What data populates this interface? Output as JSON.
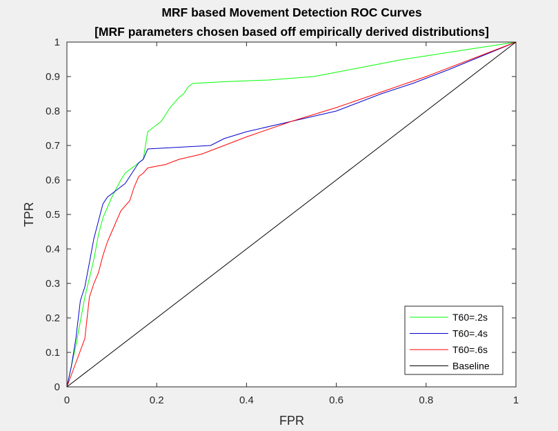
{
  "chart_data": {
    "type": "line",
    "title": "MRF based Movement Detection ROC Curves",
    "subtitle": "[MRF parameters chosen based off empirically derived distributions]",
    "xlabel": "FPR",
    "ylabel": "TPR",
    "xlim": [
      0,
      1
    ],
    "ylim": [
      0,
      1
    ],
    "x_ticks": [
      "0",
      "0.2",
      "0.4",
      "0.6",
      "0.8",
      "1"
    ],
    "y_ticks": [
      "0",
      "0.1",
      "0.2",
      "0.3",
      "0.4",
      "0.5",
      "0.6",
      "0.7",
      "0.8",
      "0.9",
      "1"
    ],
    "grid": false,
    "legend_position": "bottom-right",
    "series": [
      {
        "name": "T60=.2s",
        "color": "#00ff00",
        "points": [
          [
            0,
            0
          ],
          [
            0.02,
            0.12
          ],
          [
            0.04,
            0.26
          ],
          [
            0.06,
            0.37
          ],
          [
            0.07,
            0.44
          ],
          [
            0.08,
            0.49
          ],
          [
            0.1,
            0.55
          ],
          [
            0.12,
            0.6
          ],
          [
            0.13,
            0.62
          ],
          [
            0.15,
            0.64
          ],
          [
            0.16,
            0.65
          ],
          [
            0.17,
            0.66
          ],
          [
            0.175,
            0.7
          ],
          [
            0.18,
            0.74
          ],
          [
            0.19,
            0.75
          ],
          [
            0.21,
            0.77
          ],
          [
            0.22,
            0.79
          ],
          [
            0.23,
            0.81
          ],
          [
            0.25,
            0.84
          ],
          [
            0.26,
            0.85
          ],
          [
            0.27,
            0.87
          ],
          [
            0.28,
            0.88
          ],
          [
            0.35,
            0.885
          ],
          [
            0.45,
            0.89
          ],
          [
            0.55,
            0.9
          ],
          [
            0.65,
            0.925
          ],
          [
            0.75,
            0.95
          ],
          [
            0.85,
            0.97
          ],
          [
            1,
            1
          ]
        ]
      },
      {
        "name": "T60=.4s",
        "color": "#0000cc",
        "points": [
          [
            0,
            0
          ],
          [
            0.01,
            0.06
          ],
          [
            0.02,
            0.14
          ],
          [
            0.03,
            0.25
          ],
          [
            0.04,
            0.29
          ],
          [
            0.05,
            0.36
          ],
          [
            0.06,
            0.43
          ],
          [
            0.07,
            0.48
          ],
          [
            0.08,
            0.53
          ],
          [
            0.09,
            0.55
          ],
          [
            0.11,
            0.57
          ],
          [
            0.13,
            0.59
          ],
          [
            0.15,
            0.63
          ],
          [
            0.16,
            0.65
          ],
          [
            0.17,
            0.66
          ],
          [
            0.18,
            0.69
          ],
          [
            0.25,
            0.695
          ],
          [
            0.32,
            0.7
          ],
          [
            0.35,
            0.72
          ],
          [
            0.4,
            0.74
          ],
          [
            0.5,
            0.77
          ],
          [
            0.6,
            0.8
          ],
          [
            0.7,
            0.85
          ],
          [
            0.77,
            0.88
          ],
          [
            0.85,
            0.92
          ],
          [
            1,
            1
          ]
        ]
      },
      {
        "name": "T60=.6s",
        "color": "#ff0000",
        "points": [
          [
            0,
            0
          ],
          [
            0.02,
            0.07
          ],
          [
            0.04,
            0.14
          ],
          [
            0.05,
            0.26
          ],
          [
            0.06,
            0.3
          ],
          [
            0.07,
            0.33
          ],
          [
            0.08,
            0.38
          ],
          [
            0.09,
            0.42
          ],
          [
            0.1,
            0.45
          ],
          [
            0.11,
            0.48
          ],
          [
            0.12,
            0.51
          ],
          [
            0.14,
            0.54
          ],
          [
            0.15,
            0.58
          ],
          [
            0.16,
            0.61
          ],
          [
            0.17,
            0.62
          ],
          [
            0.18,
            0.635
          ],
          [
            0.22,
            0.645
          ],
          [
            0.25,
            0.66
          ],
          [
            0.3,
            0.675
          ],
          [
            0.35,
            0.7
          ],
          [
            0.4,
            0.725
          ],
          [
            0.5,
            0.77
          ],
          [
            0.6,
            0.81
          ],
          [
            0.7,
            0.855
          ],
          [
            0.8,
            0.9
          ],
          [
            0.9,
            0.95
          ],
          [
            1,
            1
          ]
        ]
      },
      {
        "name": "Baseline",
        "color": "#000000",
        "points": [
          [
            0,
            0
          ],
          [
            1,
            1
          ]
        ]
      }
    ]
  }
}
